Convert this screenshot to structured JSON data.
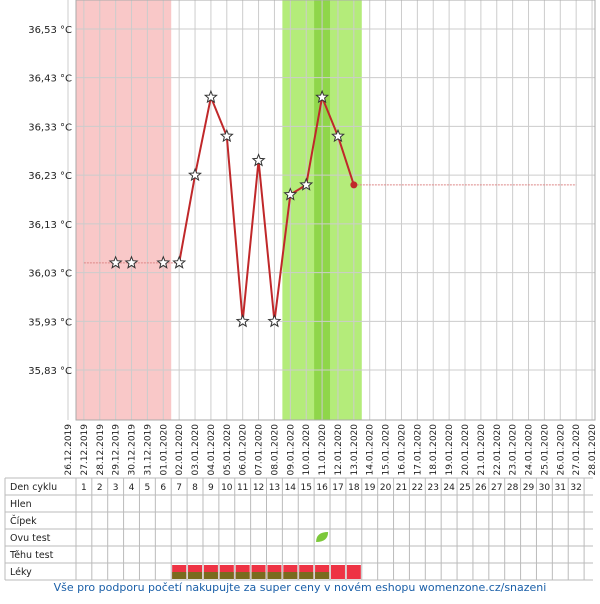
{
  "chart_data": {
    "type": "line",
    "ylim": [
      35.7275,
      36.5894
    ],
    "yticks": [
      {
        "value": 36.53,
        "label": "36,53 °C"
      },
      {
        "value": 36.43,
        "label": "36,43 °C"
      },
      {
        "value": 36.33,
        "label": "36,33 °C"
      },
      {
        "value": 36.23,
        "label": "36,23 °C"
      },
      {
        "value": 36.13,
        "label": "36,13 °C"
      },
      {
        "value": 36.03,
        "label": "36,03 °C"
      },
      {
        "value": 35.93,
        "label": "35,93 °C"
      },
      {
        "value": 35.83,
        "label": "35,83 °C"
      }
    ],
    "categories": [
      "26.12.2019",
      "27.12.2019",
      "28.12.2019",
      "29.12.2019",
      "30.12.2019",
      "31.12.2019",
      "01.01.2020",
      "02.01.2020",
      "03.01.2020",
      "04.01.2020",
      "05.01.2020",
      "06.01.2020",
      "07.01.2020",
      "08.01.2020",
      "09.01.2020",
      "10.01.2020",
      "11.01.2020",
      "12.01.2020",
      "13.01.2020",
      "14.01.2020",
      "15.01.2020",
      "16.01.2020",
      "17.01.2020",
      "18.01.2020",
      "19.01.2020",
      "20.01.2020",
      "21.01.2020",
      "22.01.2020",
      "23.01.2020",
      "24.01.2020",
      "25.01.2020",
      "26.01.2020",
      "27.01.2020",
      "28.01.2020"
    ],
    "series": [
      {
        "style": "line",
        "color": "#c0282a",
        "values": [
          null,
          null,
          null,
          null,
          null,
          null,
          null,
          36.05,
          36.23,
          36.39,
          36.31,
          35.93,
          36.26,
          35.93,
          36.19,
          36.21,
          36.39,
          36.31,
          36.21,
          null,
          null,
          null,
          null,
          null,
          null,
          null,
          null,
          null,
          null,
          null,
          null,
          null,
          null,
          null
        ]
      },
      {
        "style": "markers",
        "color": "#c0282a",
        "values": [
          null,
          null,
          null,
          36.05,
          36.05,
          null,
          36.05,
          null,
          null,
          null,
          null,
          null,
          null,
          null,
          null,
          null,
          null,
          null,
          null,
          null,
          null,
          null,
          null,
          null,
          null,
          null,
          null,
          null,
          null,
          null,
          null,
          null,
          null,
          null
        ]
      },
      {
        "style": "thin",
        "color": "#d88",
        "values": [
          null,
          36.05,
          36.05,
          36.05,
          36.05,
          36.05,
          36.05,
          36.05,
          null,
          null,
          null,
          null,
          null,
          null,
          null,
          null,
          null,
          null,
          36.21,
          36.21,
          36.21,
          36.21,
          36.21,
          36.21,
          36.21,
          36.21,
          36.21,
          36.21,
          36.21,
          36.21,
          36.21,
          36.21,
          36.21,
          null
        ]
      }
    ],
    "bands": [
      {
        "from": 1,
        "to": 6,
        "color": "#f9c8c8"
      },
      {
        "from": 14,
        "to": 18,
        "color": "#b4ec7a"
      },
      {
        "from": 16,
        "to": 16,
        "color": "#8fd64a"
      }
    ],
    "table": {
      "row_labels": [
        "Den cyklu",
        "Hlen",
        "Čípek",
        "Ovu test",
        "Těhu test",
        "Léky"
      ],
      "cycle_days": [
        1,
        2,
        3,
        4,
        5,
        6,
        7,
        8,
        9,
        10,
        11,
        12,
        13,
        14,
        15,
        16,
        17,
        18,
        19,
        20,
        21,
        22,
        23,
        24,
        25,
        26,
        27,
        28,
        29,
        30,
        31,
        32
      ],
      "ovu_test_days": [
        16
      ],
      "medication_days": [
        7,
        8,
        9,
        10,
        11,
        12,
        13,
        14,
        15,
        16,
        17,
        18
      ],
      "medication_second_days": [
        7,
        8,
        9,
        10,
        11,
        12,
        13,
        14,
        15,
        16
      ]
    },
    "footer": "Vše pro podporu početí nakupujte za super ceny v novém eshopu womenzone.cz/snazeni"
  }
}
